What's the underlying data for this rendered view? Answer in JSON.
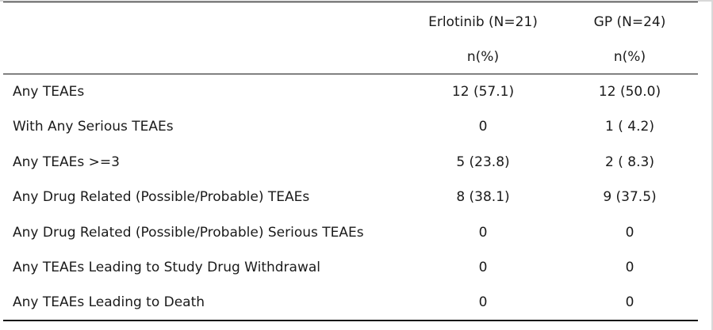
{
  "table": {
    "columns": [
      {
        "header": "Erlotinib (N=21)",
        "subheader": "n(%)"
      },
      {
        "header": "GP (N=24)",
        "subheader": "n(%)"
      }
    ],
    "rows": [
      {
        "label": "Any TEAEs",
        "values": [
          "12 (57.1)",
          "12 (50.0)"
        ]
      },
      {
        "label": "With Any Serious TEAEs",
        "values": [
          "0",
          "1 ( 4.2)"
        ]
      },
      {
        "label": "Any TEAEs >=3",
        "values": [
          "5 (23.8)",
          "2 ( 8.3)"
        ]
      },
      {
        "label": "Any Drug Related (Possible/Probable) TEAEs",
        "values": [
          "8 (38.1)",
          "9 (37.5)"
        ]
      },
      {
        "label": "Any Drug Related (Possible/Probable) Serious TEAEs",
        "values": [
          "0",
          "0"
        ]
      },
      {
        "label": "Any TEAEs Leading to Study Drug Withdrawal",
        "values": [
          "0",
          "0"
        ]
      },
      {
        "label": "Any TEAEs Leading to Death",
        "values": [
          "0",
          "0"
        ]
      }
    ]
  }
}
